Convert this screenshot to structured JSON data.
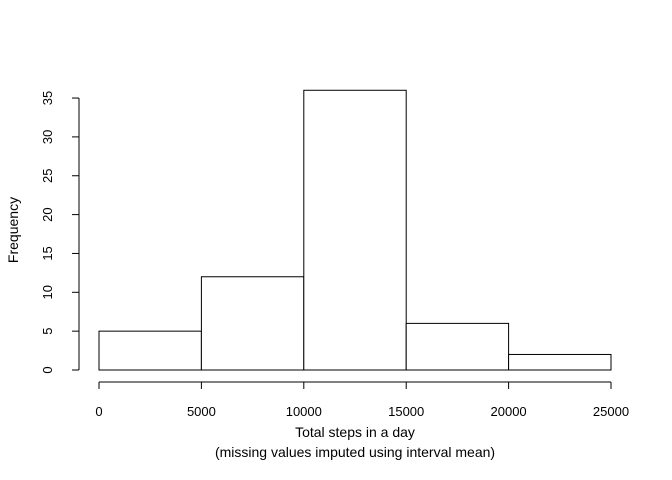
{
  "chart_data": {
    "type": "bar",
    "subtype": "histogram",
    "bins": [
      {
        "start": 0,
        "end": 5000,
        "count": 5
      },
      {
        "start": 5000,
        "end": 10000,
        "count": 12
      },
      {
        "start": 10000,
        "end": 15000,
        "count": 36
      },
      {
        "start": 15000,
        "end": 20000,
        "count": 6
      },
      {
        "start": 20000,
        "end": 25000,
        "count": 2
      }
    ],
    "title": "",
    "xlabel": "Total steps in a day",
    "xlabel_line2": "(missing values imputed using interval mean)",
    "ylabel": "Frequency",
    "xlim": [
      0,
      25000
    ],
    "ylim": [
      0,
      36
    ],
    "xticks": [
      0,
      5000,
      10000,
      15000,
      20000,
      25000
    ],
    "yticks": [
      0,
      5,
      10,
      15,
      20,
      25,
      30,
      35
    ],
    "grid": false,
    "bar_fill": "#ffffff",
    "bar_stroke": "#000000"
  }
}
